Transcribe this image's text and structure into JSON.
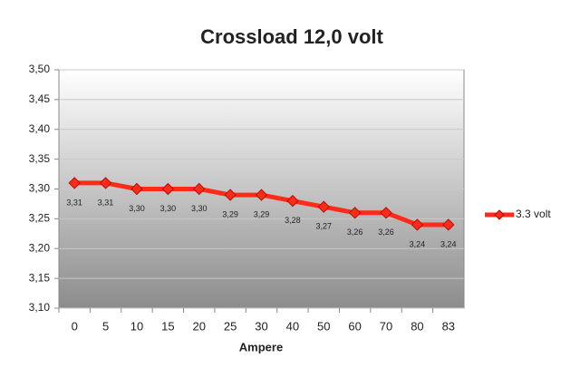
{
  "chart_data": {
    "type": "line",
    "title": "Crossload 12,0 volt",
    "x_label": "Ampere",
    "categories": [
      "0",
      "5",
      "10",
      "15",
      "20",
      "25",
      "30",
      "40",
      "50",
      "60",
      "70",
      "80",
      "83"
    ],
    "series": [
      {
        "name": "3.3 volt",
        "color": "#ff2a1a",
        "values": [
          3.31,
          3.31,
          3.3,
          3.3,
          3.3,
          3.29,
          3.29,
          3.28,
          3.27,
          3.26,
          3.26,
          3.24,
          3.24
        ],
        "value_labels": [
          "3,31",
          "3,31",
          "3,30",
          "3,30",
          "3,30",
          "3,29",
          "3,29",
          "3,28",
          "3,27",
          "3,26",
          "3,26",
          "3,24",
          "3,24"
        ]
      }
    ],
    "ylim": [
      3.1,
      3.5
    ],
    "yticks": [
      {
        "value": 3.1,
        "label": "3,10"
      },
      {
        "value": 3.15,
        "label": "3,15"
      },
      {
        "value": 3.2,
        "label": "3,20"
      },
      {
        "value": 3.25,
        "label": "3,25"
      },
      {
        "value": 3.3,
        "label": "3,30"
      },
      {
        "value": 3.35,
        "label": "3,35"
      },
      {
        "value": 3.4,
        "label": "3,40"
      },
      {
        "value": 3.45,
        "label": "3,45"
      },
      {
        "value": 3.5,
        "label": "3,50"
      }
    ],
    "grid": true,
    "legend": "right"
  }
}
